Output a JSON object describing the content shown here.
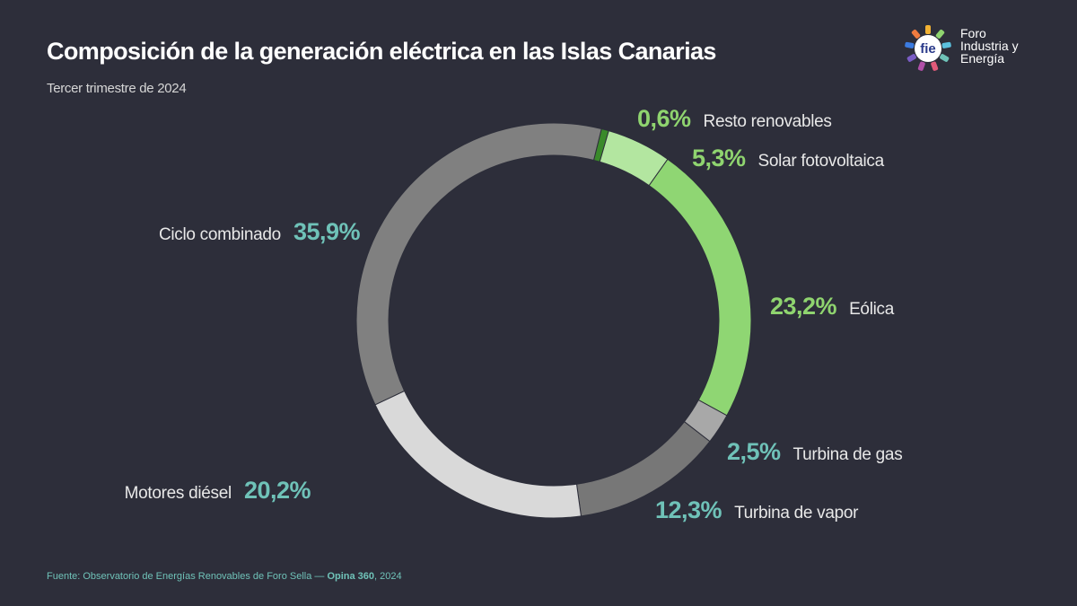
{
  "title": "Composición de la generación eléctrica en las Islas Canarias",
  "subtitle": "Tercer trimestre de 2024",
  "logo": {
    "mark": "fie",
    "line1": "Foro",
    "line2": "Industria y",
    "line3": "Energía"
  },
  "footer": {
    "source": "Fuente: Observatorio de Energías Renovables de Foro Sella — ",
    "brand": "Opina 360",
    "year": ", 2024"
  },
  "chart_data": {
    "type": "pie",
    "style": "donut",
    "title": "Composición de la generación eléctrica en las Islas Canarias",
    "subtitle": "Tercer trimestre de 2024",
    "unit": "%",
    "slices": [
      {
        "label": "Resto renovables",
        "value": 0.6,
        "value_label": "0,6%",
        "color": "#3a8a2a",
        "label_color": "#8fd46f"
      },
      {
        "label": "Solar fotovoltaica",
        "value": 5.3,
        "value_label": "5,3%",
        "color": "#b3e6a0",
        "label_color": "#8fd46f"
      },
      {
        "label": "Eólica",
        "value": 23.2,
        "value_label": "23,2%",
        "color": "#8fd673",
        "label_color": "#8fd46f"
      },
      {
        "label": "Turbina de gas",
        "value": 2.5,
        "value_label": "2,5%",
        "color": "#a8a8a8",
        "label_color": "#6fc2b8"
      },
      {
        "label": "Turbina de vapor",
        "value": 12.3,
        "value_label": "12,3%",
        "color": "#777777",
        "label_color": "#6fc2b8"
      },
      {
        "label": "Motores diésel",
        "value": 20.2,
        "value_label": "20,2%",
        "color": "#d9d9d9",
        "label_color": "#6fc2b8"
      },
      {
        "label": "Ciclo combinado",
        "value": 35.9,
        "value_label": "35,9%",
        "color": "#808080",
        "label_color": "#6fc2b8"
      }
    ]
  }
}
